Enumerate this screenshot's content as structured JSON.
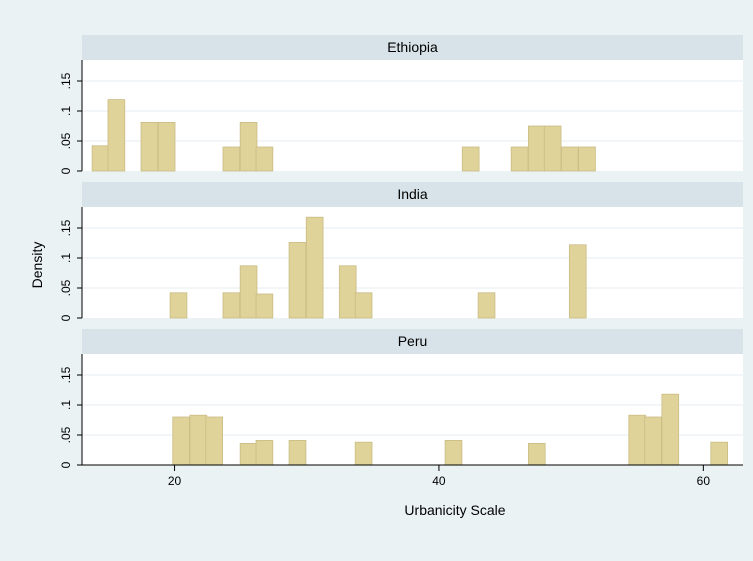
{
  "chart_data": {
    "type": "bar",
    "subtype": "faceted-histogram",
    "xlabel": "Urbanicity Scale",
    "ylabel": "Density",
    "x_ticks": [
      20,
      40,
      60
    ],
    "x_range": [
      13,
      63
    ],
    "y_ticks": [
      {
        "value": 0,
        "label": "0"
      },
      {
        "value": 0.05,
        "label": ".05"
      },
      {
        "value": 0.1,
        "label": ".1"
      },
      {
        "value": 0.15,
        "label": ".15"
      }
    ],
    "ylim": [
      0,
      0.185
    ],
    "bin_width": 1.27,
    "colors": {
      "bar_fill": "#e0d39a",
      "bar_stroke": "#c9bc84",
      "strip": "#d7e3e8",
      "plot_bg": "#ffffff",
      "outer_bg": "#eaf2f3",
      "grid": "#e6eef0"
    },
    "panels": [
      {
        "title": "Ethiopia",
        "bins": [
          {
            "x": 14.4,
            "density": 0.042
          },
          {
            "x": 15.6,
            "density": 0.119
          },
          {
            "x": 18.1,
            "density": 0.081
          },
          {
            "x": 19.4,
            "density": 0.081
          },
          {
            "x": 24.3,
            "density": 0.04
          },
          {
            "x": 25.6,
            "density": 0.081
          },
          {
            "x": 26.8,
            "density": 0.04
          },
          {
            "x": 42.4,
            "density": 0.04
          },
          {
            "x": 46.1,
            "density": 0.04
          },
          {
            "x": 47.4,
            "density": 0.075
          },
          {
            "x": 48.6,
            "density": 0.075
          },
          {
            "x": 49.9,
            "density": 0.04
          },
          {
            "x": 51.2,
            "density": 0.04
          }
        ]
      },
      {
        "title": "India",
        "bins": [
          {
            "x": 20.3,
            "density": 0.042
          },
          {
            "x": 24.3,
            "density": 0.042
          },
          {
            "x": 25.6,
            "density": 0.087
          },
          {
            "x": 26.8,
            "density": 0.04
          },
          {
            "x": 29.3,
            "density": 0.126
          },
          {
            "x": 30.6,
            "density": 0.168
          },
          {
            "x": 33.1,
            "density": 0.087
          },
          {
            "x": 34.3,
            "density": 0.042
          },
          {
            "x": 43.6,
            "density": 0.042
          },
          {
            "x": 50.5,
            "density": 0.122
          }
        ]
      },
      {
        "title": "Peru",
        "bins": [
          {
            "x": 20.5,
            "density": 0.08
          },
          {
            "x": 21.8,
            "density": 0.083
          },
          {
            "x": 23.0,
            "density": 0.08
          },
          {
            "x": 25.6,
            "density": 0.036
          },
          {
            "x": 26.8,
            "density": 0.041
          },
          {
            "x": 29.3,
            "density": 0.041
          },
          {
            "x": 34.3,
            "density": 0.038
          },
          {
            "x": 41.1,
            "density": 0.041
          },
          {
            "x": 47.4,
            "density": 0.036
          },
          {
            "x": 55.0,
            "density": 0.083
          },
          {
            "x": 56.2,
            "density": 0.08
          },
          {
            "x": 57.5,
            "density": 0.118
          },
          {
            "x": 61.2,
            "density": 0.038
          }
        ]
      }
    ]
  }
}
